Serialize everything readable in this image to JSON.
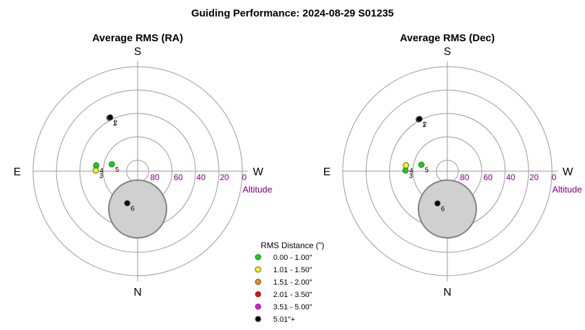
{
  "title": "Guiding Performance: 2024-08-29 S01235",
  "colors": {
    "ring": "#999999",
    "axis": "#999999",
    "altitude_text": "#800080",
    "zenith_fill": "#d0d0d0",
    "zenith_stroke": "#808080",
    "point_stroke": "#555555"
  },
  "legend": {
    "title": "RMS Distance (\")",
    "items": [
      {
        "label": "0.00 - 1.00\"",
        "color": "#00e000"
      },
      {
        "label": "1.01 - 1.50\"",
        "color": "#ffff00"
      },
      {
        "label": "1.51 - 2.00\"",
        "color": "#e69500"
      },
      {
        "label": "2.01 - 3.50\"",
        "color": "#ff0000"
      },
      {
        "label": "3.51 - 5.00\"",
        "color": "#ff00ff"
      },
      {
        "label": "5.01\"+",
        "color": "#000000"
      }
    ]
  },
  "chart_data": [
    {
      "type": "polar-scatter",
      "title": "Average RMS (RA)",
      "compass": {
        "top": "S",
        "bottom": "N",
        "left": "E",
        "right": "W"
      },
      "r_axis": {
        "label": "Altitude",
        "ticks": [
          "80",
          "60",
          "40",
          "20",
          "0"
        ],
        "range_altitude": [
          90,
          0
        ]
      },
      "points": [
        {
          "label": "1",
          "az_deg": 118,
          "alt": 38,
          "color": "#ff00ff"
        },
        {
          "label": "2",
          "az_deg": 117,
          "alt": 38,
          "color": "#000000"
        },
        {
          "label": "3",
          "az_deg": 179,
          "alt": 54,
          "color": "#ffff00"
        },
        {
          "label": "4",
          "az_deg": 172,
          "alt": 54,
          "color": "#00e000"
        },
        {
          "label": "5",
          "az_deg": 165,
          "alt": 67,
          "color": "#00e000"
        },
        {
          "label": "6",
          "az_deg": 252,
          "alt": 61,
          "color": "#000000"
        }
      ]
    },
    {
      "type": "polar-scatter",
      "title": "Average RMS (Dec)",
      "compass": {
        "top": "S",
        "bottom": "N",
        "left": "E",
        "right": "W"
      },
      "r_axis": {
        "label": "Altitude",
        "ticks": [
          "80",
          "60",
          "40",
          "20",
          "0"
        ],
        "range_altitude": [
          90,
          0
        ]
      },
      "points": [
        {
          "label": "1",
          "az_deg": 119,
          "alt": 39,
          "color": "#000000"
        },
        {
          "label": "2",
          "az_deg": 118,
          "alt": 39,
          "color": "#000000"
        },
        {
          "label": "3",
          "az_deg": 179,
          "alt": 54,
          "color": "#00e000"
        },
        {
          "label": "4",
          "az_deg": 172,
          "alt": 54,
          "color": "#ffff00"
        },
        {
          "label": "5",
          "az_deg": 166,
          "alt": 67,
          "color": "#00e000"
        },
        {
          "label": "6",
          "az_deg": 253,
          "alt": 61,
          "color": "#000000"
        }
      ]
    }
  ]
}
